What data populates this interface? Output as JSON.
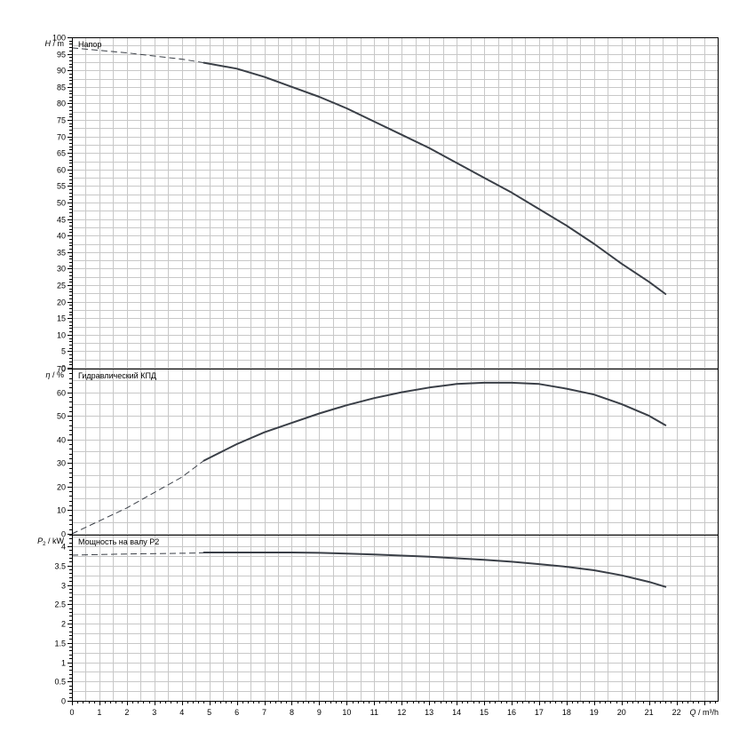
{
  "chart_data": [
    {
      "type": "line",
      "title": "Напор",
      "ylabel_symbol": "H",
      "ylabel_unit": "m",
      "xlabel": "Q / m³/h",
      "xlim": [
        0,
        23.5
      ],
      "ylim": [
        0,
        100
      ],
      "y_label_step": 5,
      "x_tick_labels": [
        "0",
        "1",
        "2",
        "3",
        "4",
        "5",
        "6",
        "7",
        "8",
        "9",
        "10",
        "11",
        "12",
        "13",
        "14",
        "15",
        "16",
        "17",
        "18",
        "19",
        "20",
        "21",
        "22"
      ],
      "grid": true,
      "series": [
        {
          "style": "dashed",
          "x": [
            0,
            2,
            4,
            4.8
          ],
          "y": [
            96.8,
            95.3,
            93.4,
            92.3
          ]
        },
        {
          "style": "solid",
          "x": [
            4.8,
            6,
            7,
            8,
            9,
            10,
            11,
            12,
            13,
            14,
            15,
            16,
            17,
            18,
            19,
            20,
            21,
            21.6
          ],
          "y": [
            92.3,
            90.5,
            88,
            85,
            82,
            78.5,
            74.5,
            70.5,
            66.5,
            62,
            57.5,
            53,
            48,
            43,
            37.5,
            31.5,
            26,
            22.3
          ]
        }
      ]
    },
    {
      "type": "line",
      "title": "Гидравлический КПД",
      "ylabel_symbol": "η",
      "ylabel_unit": "%",
      "xlim": [
        0,
        23.5
      ],
      "ylim": [
        0,
        70
      ],
      "y_label_step": 10,
      "grid": true,
      "series": [
        {
          "style": "dashed",
          "x": [
            0,
            2,
            4,
            4.8
          ],
          "y": [
            0,
            11,
            24,
            31
          ]
        },
        {
          "style": "solid",
          "x": [
            4.8,
            6,
            7,
            8,
            9,
            10,
            11,
            12,
            13,
            14,
            15,
            16,
            17,
            18,
            19,
            20,
            21,
            21.6
          ],
          "y": [
            31,
            38,
            43,
            47,
            51,
            54.5,
            57.5,
            60,
            62,
            63.5,
            64,
            64,
            63.5,
            61.5,
            59,
            55,
            50,
            46
          ]
        }
      ]
    },
    {
      "type": "line",
      "title": "Мощность на валу P2",
      "ylabel_symbol": "P",
      "ylabel_subscript": "2",
      "ylabel_unit": "kW",
      "xlim": [
        0,
        23.5
      ],
      "ylim": [
        0,
        4.3
      ],
      "y_label_step": 0.5,
      "grid": true,
      "series": [
        {
          "style": "dashed",
          "x": [
            0,
            2,
            4,
            4.8
          ],
          "y": [
            3.77,
            3.8,
            3.82,
            3.83
          ]
        },
        {
          "style": "solid",
          "x": [
            4.8,
            6,
            7,
            8,
            9,
            10,
            11,
            12,
            13,
            14,
            15,
            16,
            17,
            18,
            19,
            20,
            21,
            21.6
          ],
          "y": [
            3.84,
            3.84,
            3.84,
            3.84,
            3.83,
            3.81,
            3.79,
            3.76,
            3.73,
            3.69,
            3.65,
            3.6,
            3.54,
            3.47,
            3.38,
            3.25,
            3.08,
            2.95
          ]
        }
      ]
    }
  ]
}
